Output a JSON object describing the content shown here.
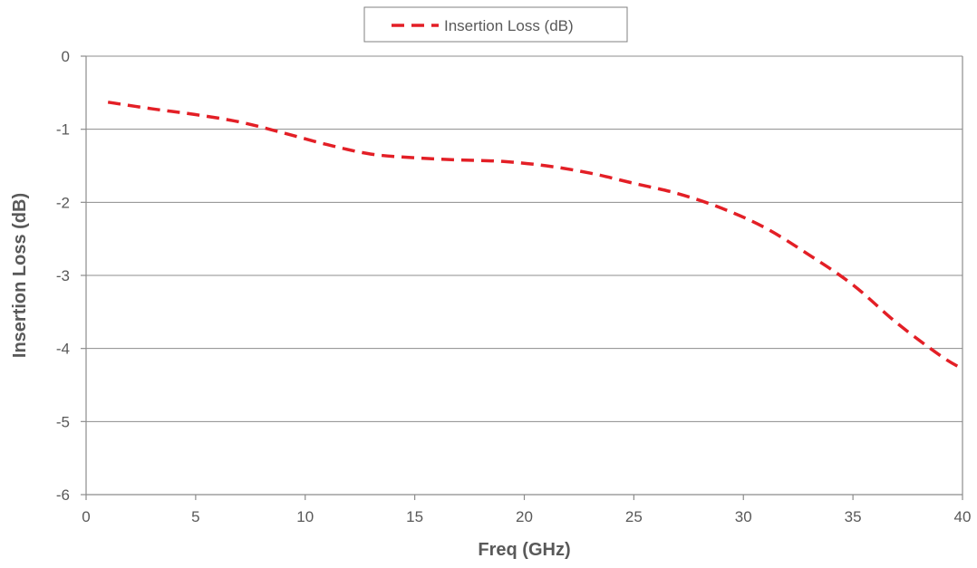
{
  "chart_data": {
    "type": "line",
    "title": "",
    "xlabel": "Freq (GHz)",
    "ylabel": "Insertion Loss (dB)",
    "xlim": [
      0,
      40
    ],
    "ylim": [
      -6,
      0
    ],
    "xticks": [
      0,
      5,
      10,
      15,
      20,
      25,
      30,
      35,
      40
    ],
    "yticks": [
      0,
      -1,
      -2,
      -3,
      -4,
      -5,
      -6
    ],
    "grid": "horizontal",
    "legend_position": "top-center",
    "series": [
      {
        "name": "Insertion Loss (dB)",
        "color": "#e31f26",
        "style": "dashed",
        "x": [
          1,
          3,
          5,
          7,
          9,
          11,
          13,
          15,
          17,
          19,
          21,
          23,
          25,
          27,
          29,
          31,
          33,
          35,
          37,
          39,
          40
        ],
        "y": [
          -0.63,
          -0.72,
          -0.8,
          -0.9,
          -1.05,
          -1.21,
          -1.34,
          -1.39,
          -1.42,
          -1.44,
          -1.5,
          -1.6,
          -1.74,
          -1.88,
          -2.08,
          -2.35,
          -2.72,
          -3.13,
          -3.65,
          -4.1,
          -4.28
        ]
      }
    ]
  }
}
